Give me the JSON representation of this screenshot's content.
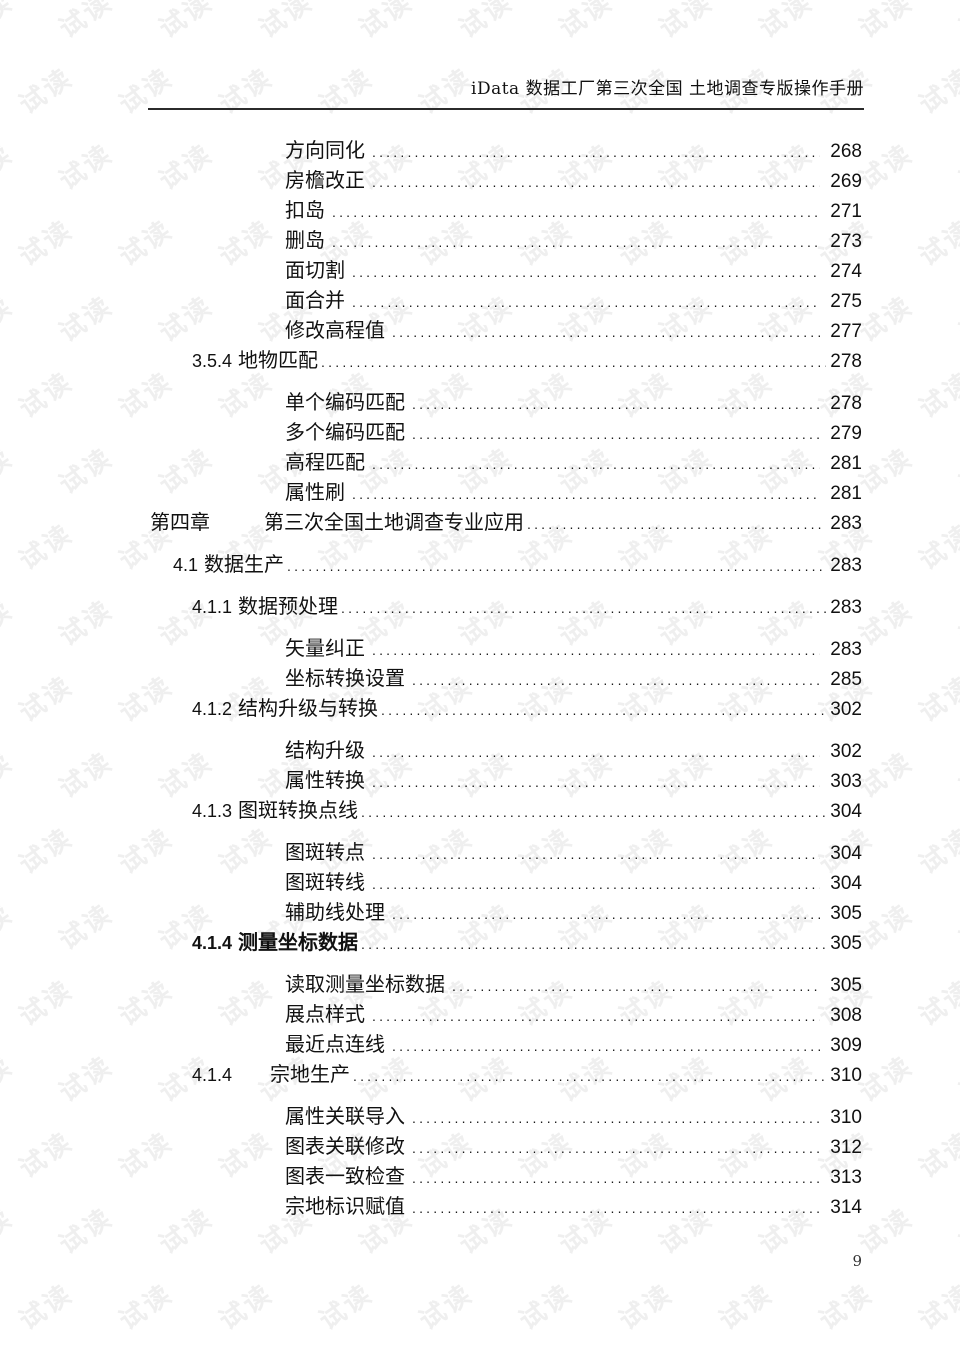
{
  "watermark": {
    "text": "试读",
    "color": "#efefef"
  },
  "header": {
    "title": "iData 数据工厂第三次全国 土地调查专版操作手册"
  },
  "toc": {
    "entries": [
      {
        "level": 3,
        "num": "",
        "title": "方向同化",
        "page": "268"
      },
      {
        "level": 3,
        "num": "",
        "title": "房檐改正",
        "page": "269"
      },
      {
        "level": 3,
        "num": "",
        "title": "扣岛",
        "page": "271"
      },
      {
        "level": 3,
        "num": "",
        "title": "删岛",
        "page": "273"
      },
      {
        "level": 3,
        "num": "",
        "title": "面切割",
        "page": "274"
      },
      {
        "level": 3,
        "num": "",
        "title": "面合并",
        "page": "275"
      },
      {
        "level": 3,
        "num": "",
        "title": "修改高程值",
        "page": "277"
      },
      {
        "level": 2,
        "num": "3.5.4",
        "title": "地物匹配",
        "page": "278",
        "gap_after": true
      },
      {
        "level": 3,
        "num": "",
        "title": "单个编码匹配",
        "page": "278"
      },
      {
        "level": 3,
        "num": "",
        "title": "多个编码匹配",
        "page": "279"
      },
      {
        "level": 3,
        "num": "",
        "title": "高程匹配",
        "page": "281"
      },
      {
        "level": 3,
        "num": "",
        "title": "属性刷",
        "page": "281"
      },
      {
        "level": 0,
        "num": "第四章",
        "title": "第三次全国土地调查专业应用",
        "page": "283",
        "tab": true,
        "gap_after": true
      },
      {
        "level": 1,
        "num": "4.1",
        "title": "数据生产",
        "page": "283",
        "gap_after": true
      },
      {
        "level": 2,
        "num": "4.1.1",
        "title": "数据预处理",
        "page": "283",
        "gap_after": true
      },
      {
        "level": 3,
        "num": "",
        "title": "矢量纠正",
        "page": "283"
      },
      {
        "level": 3,
        "num": "",
        "title": "坐标转换设置",
        "page": "285"
      },
      {
        "level": 2,
        "num": "4.1.2",
        "title": "结构升级与转换",
        "page": "302",
        "gap_after": true
      },
      {
        "level": 3,
        "num": "",
        "title": "结构升级",
        "page": "302"
      },
      {
        "level": 3,
        "num": "",
        "title": "属性转换",
        "page": "303"
      },
      {
        "level": 2,
        "num": "4.1.3",
        "title": "图斑转换点线",
        "page": "304",
        "gap_after": true
      },
      {
        "level": 3,
        "num": "",
        "title": "图斑转点",
        "page": "304"
      },
      {
        "level": 3,
        "num": "",
        "title": "图斑转线",
        "page": "304"
      },
      {
        "level": 3,
        "num": "",
        "title": "辅助线处理",
        "page": "305"
      },
      {
        "level": 2,
        "num": "4.1.4",
        "title": "测量坐标数据",
        "page": "305",
        "bold": true,
        "gap_after": true
      },
      {
        "level": 3,
        "num": "",
        "title": "读取测量坐标数据",
        "page": "305"
      },
      {
        "level": 3,
        "num": "",
        "title": "展点样式",
        "page": "308"
      },
      {
        "level": 3,
        "num": "",
        "title": "最近点连线",
        "page": "309"
      },
      {
        "level": 2,
        "num": "4.1.4",
        "title": "宗地生产",
        "page": "310",
        "tab": true,
        "gap_after": true
      },
      {
        "level": 3,
        "num": "",
        "title": "属性关联导入",
        "page": "310"
      },
      {
        "level": 3,
        "num": "",
        "title": "图表关联修改",
        "page": "312"
      },
      {
        "level": 3,
        "num": "",
        "title": "图表一致检查",
        "page": "313"
      },
      {
        "level": 3,
        "num": "",
        "title": "宗地标识赋值",
        "page": "314"
      }
    ]
  },
  "footer": {
    "page_number": "9"
  }
}
